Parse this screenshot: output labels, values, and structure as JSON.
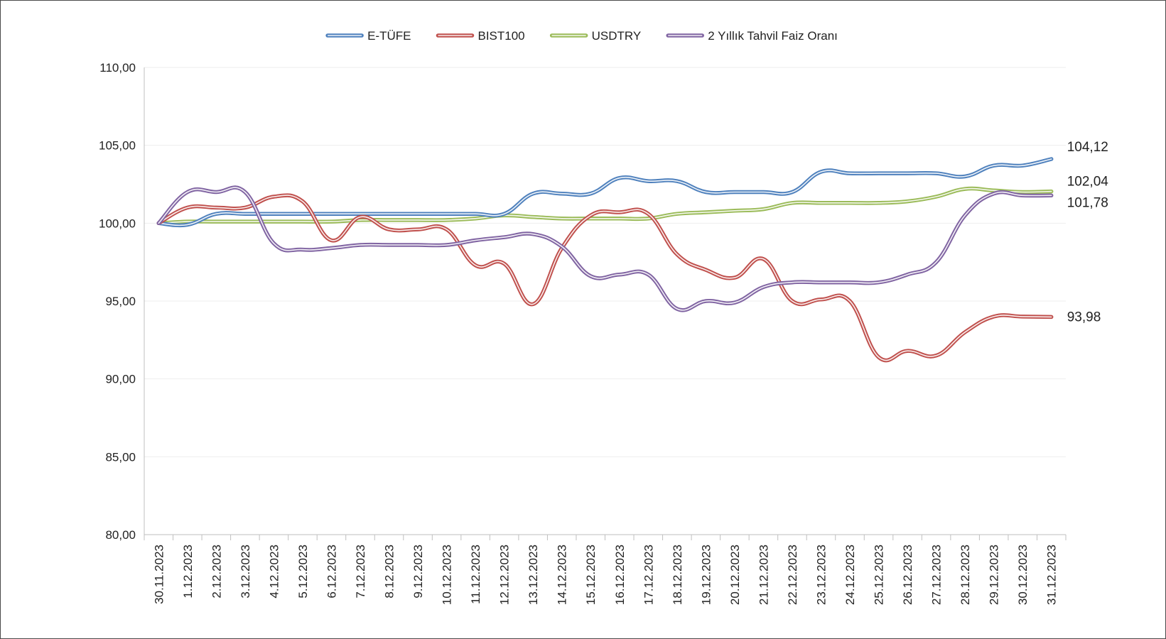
{
  "chart_data": {
    "type": "line",
    "title": "",
    "xlabel": "",
    "ylabel": "",
    "ylim": [
      80,
      110
    ],
    "y_ticks": [
      "80,00",
      "85,00",
      "90,00",
      "95,00",
      "100,00",
      "105,00",
      "110,00"
    ],
    "grid": true,
    "legend_position": "top",
    "categories": [
      "30.11.2023",
      "1.12.2023",
      "2.12.2023",
      "3.12.2023",
      "4.12.2023",
      "5.12.2023",
      "6.12.2023",
      "7.12.2023",
      "8.12.2023",
      "9.12.2023",
      "10.12.2023",
      "11.12.2023",
      "12.12.2023",
      "13.12.2023",
      "14.12.2023",
      "15.12.2023",
      "16.12.2023",
      "17.12.2023",
      "18.12.2023",
      "19.12.2023",
      "20.12.2023",
      "21.12.2023",
      "22.12.2023",
      "23.12.2023",
      "24.12.2023",
      "25.12.2023",
      "26.12.2023",
      "27.12.2023",
      "28.12.2023",
      "29.12.2023",
      "30.12.2023",
      "31.12.2023"
    ],
    "series": [
      {
        "name": "E-TÜFE",
        "color": "#4f81bd",
        "values": [
          100.0,
          99.9,
          100.6,
          100.6,
          100.6,
          100.6,
          100.6,
          100.6,
          100.6,
          100.6,
          100.6,
          100.6,
          100.6,
          101.9,
          101.9,
          101.9,
          102.9,
          102.7,
          102.7,
          102.0,
          102.0,
          102.0,
          102.0,
          103.3,
          103.2,
          103.2,
          103.2,
          103.2,
          103.0,
          103.7,
          103.7,
          104.12
        ],
        "end_label": "104,12"
      },
      {
        "name": "BIST100",
        "color": "#c0504d",
        "values": [
          100.0,
          101.0,
          101.0,
          101.0,
          101.7,
          101.4,
          98.9,
          100.4,
          99.6,
          99.6,
          99.6,
          97.3,
          97.4,
          94.8,
          98.4,
          100.5,
          100.7,
          100.6,
          98.0,
          97.0,
          96.5,
          97.7,
          95.0,
          95.1,
          95.0,
          91.4,
          91.8,
          91.5,
          93.0,
          94.0,
          94.0,
          93.98
        ],
        "end_label": "93,98"
      },
      {
        "name": "USDTRY",
        "color": "#9bbb59",
        "values": [
          100.0,
          100.1,
          100.1,
          100.1,
          100.1,
          100.1,
          100.1,
          100.2,
          100.2,
          100.2,
          100.2,
          100.3,
          100.5,
          100.4,
          100.3,
          100.3,
          100.3,
          100.3,
          100.6,
          100.7,
          100.8,
          100.9,
          101.3,
          101.3,
          101.3,
          101.3,
          101.4,
          101.7,
          102.2,
          102.1,
          102.0,
          102.04
        ],
        "end_label": "102,04"
      },
      {
        "name": "2 Yıllık Tahvil Faiz Oranı",
        "color": "#8064a2",
        "values": [
          100.0,
          102.0,
          102.0,
          102.0,
          98.7,
          98.3,
          98.4,
          98.6,
          98.6,
          98.6,
          98.6,
          98.9,
          99.1,
          99.3,
          98.5,
          96.6,
          96.7,
          96.7,
          94.5,
          95.0,
          94.9,
          95.9,
          96.2,
          96.2,
          96.2,
          96.2,
          96.7,
          97.5,
          100.5,
          101.9,
          101.78,
          101.78
        ],
        "end_label": "101,78"
      }
    ]
  }
}
